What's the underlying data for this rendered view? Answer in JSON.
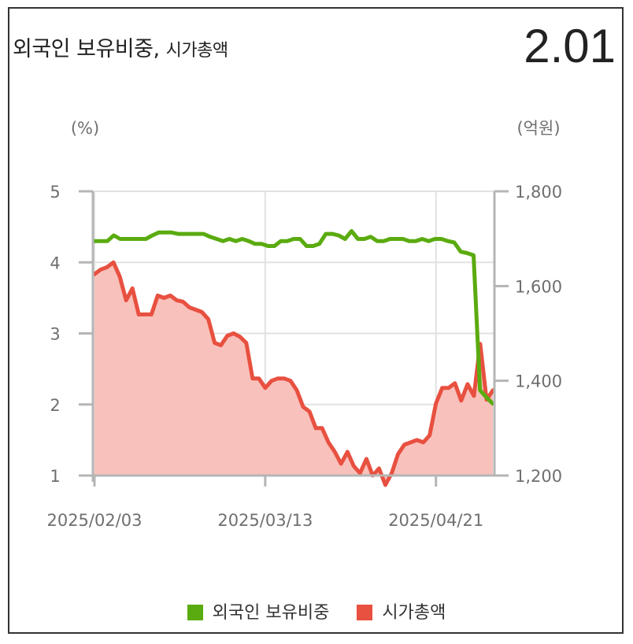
{
  "header": {
    "title": "외국인 보유비중,",
    "subtitle": "시가총액",
    "current_value": "2.01"
  },
  "colors": {
    "foreign_ratio": "#5aab0f",
    "market_cap_line": "#e85040",
    "market_cap_fill": "#f9c1bb"
  },
  "chart_data": {
    "type": "line",
    "left_unit": "(%)",
    "right_unit": "(억원)",
    "x_tick_labels": [
      "2025/02/03",
      "2025/03/13",
      "2025/04/21"
    ],
    "x_tick_index": [
      0,
      27,
      54
    ],
    "left_axis": {
      "ylim": [
        1,
        5
      ],
      "ticks": [
        "1",
        "2",
        "3",
        "4",
        "5"
      ],
      "tick_values": [
        1,
        2,
        3,
        4,
        5
      ]
    },
    "right_axis": {
      "ylim": [
        1200,
        1800
      ],
      "ticks": [
        "1,200",
        "1,400",
        "1,600",
        "1,800"
      ],
      "tick_values": [
        1200,
        1400,
        1600,
        1800
      ]
    },
    "grid": true,
    "legend_position": "bottom",
    "series": [
      {
        "name": "외국인 보유비중",
        "axis": "left",
        "values": [
          4.3,
          4.3,
          4.3,
          4.38,
          4.33,
          4.33,
          4.33,
          4.33,
          4.33,
          4.38,
          4.42,
          4.42,
          4.42,
          4.4,
          4.4,
          4.4,
          4.4,
          4.4,
          4.36,
          4.33,
          4.3,
          4.33,
          4.3,
          4.33,
          4.3,
          4.26,
          4.26,
          4.23,
          4.23,
          4.3,
          4.3,
          4.33,
          4.33,
          4.23,
          4.23,
          4.26,
          4.4,
          4.4,
          4.38,
          4.33,
          4.44,
          4.33,
          4.33,
          4.36,
          4.3,
          4.3,
          4.33,
          4.33,
          4.33,
          4.3,
          4.3,
          4.33,
          4.3,
          4.33,
          4.33,
          4.3,
          4.28,
          4.15,
          4.13,
          4.1,
          2.2,
          2.1,
          2.01
        ]
      },
      {
        "name": "시가총액",
        "axis": "right",
        "values": [
          1625,
          1635,
          1640,
          1650,
          1620,
          1570,
          1595,
          1540,
          1540,
          1540,
          1580,
          1575,
          1580,
          1570,
          1567,
          1555,
          1550,
          1545,
          1530,
          1480,
          1475,
          1495,
          1500,
          1493,
          1480,
          1405,
          1405,
          1385,
          1400,
          1405,
          1405,
          1400,
          1380,
          1345,
          1335,
          1300,
          1300,
          1270,
          1250,
          1225,
          1250,
          1220,
          1205,
          1235,
          1200,
          1215,
          1180,
          1205,
          1245,
          1265,
          1270,
          1275,
          1270,
          1285,
          1352,
          1385,
          1385,
          1395,
          1358,
          1393,
          1368,
          1478,
          1360,
          1380
        ]
      }
    ]
  },
  "legend": {
    "items": [
      {
        "label": "외국인 보유비중"
      },
      {
        "label": "시가총액"
      }
    ]
  }
}
